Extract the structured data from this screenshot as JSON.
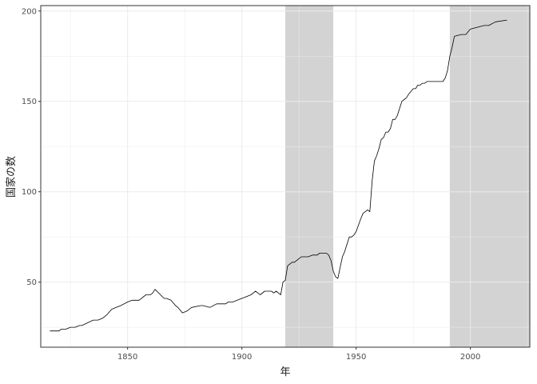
{
  "chart_data": {
    "type": "line",
    "title": "",
    "xlabel": "年",
    "ylabel": "国家の数",
    "xlim": [
      1812,
      2026
    ],
    "ylim": [
      14,
      203
    ],
    "xticks": [
      1850,
      1900,
      1950,
      2000
    ],
    "xtick_labels": [
      "1850",
      "1900",
      "1950",
      "2000"
    ],
    "yticks": [
      50,
      100,
      150,
      200
    ],
    "ytick_labels": [
      "50",
      "100",
      "150",
      "200"
    ],
    "grid": true,
    "shaded_periods": [
      {
        "start": 1919,
        "end": 1940
      },
      {
        "start": 1991,
        "end": 2026
      }
    ],
    "series": [
      {
        "x": [
          1816,
          1820,
          1821,
          1823,
          1825,
          1827,
          1829,
          1830,
          1835,
          1837,
          1839,
          1841,
          1843,
          1845,
          1847,
          1850,
          1852,
          1855,
          1858,
          1860,
          1861,
          1862,
          1866,
          1867,
          1869,
          1871,
          1872,
          1874,
          1876,
          1878,
          1882,
          1883,
          1886,
          1889,
          1893,
          1894,
          1896,
          1898,
          1900,
          1902,
          1904,
          1905,
          1906,
          1907,
          1908,
          1910,
          1913,
          1914,
          1915,
          1916,
          1917,
          1918,
          1919,
          1920,
          1921,
          1922,
          1923,
          1925,
          1926,
          1929,
          1931,
          1933,
          1934,
          1937,
          1938,
          1939,
          1940,
          1941,
          1942,
          1943,
          1944,
          1945,
          1946,
          1947,
          1948,
          1949,
          1950,
          1952,
          1953,
          1955,
          1956,
          1957,
          1958,
          1959,
          1960,
          1961,
          1962,
          1963,
          1964,
          1965,
          1966,
          1967,
          1968,
          1970,
          1971,
          1972,
          1973,
          1975,
          1976,
          1977,
          1978,
          1979,
          1980,
          1981,
          1982,
          1983,
          1984,
          1986,
          1988,
          1989,
          1990,
          1991,
          1992,
          1993,
          1996,
          1998,
          2000,
          2003,
          2006,
          2008,
          2011,
          2016
        ],
        "values": [
          23,
          23,
          24,
          24,
          25,
          25,
          26,
          26,
          29,
          29,
          30,
          32,
          35,
          36,
          37,
          39,
          40,
          40,
          43,
          43,
          44,
          46,
          41,
          41,
          40,
          37,
          36,
          33,
          34,
          36,
          37,
          37,
          36,
          38,
          38,
          39,
          39,
          40,
          41,
          42,
          43,
          44,
          45,
          44,
          43,
          45,
          45,
          44,
          45,
          44,
          43,
          50,
          51,
          59,
          60,
          61,
          61,
          63,
          64,
          64,
          65,
          65,
          66,
          66,
          65,
          62,
          56,
          53,
          52,
          58,
          64,
          67,
          71,
          75,
          75,
          76,
          78,
          85,
          88,
          90,
          89,
          106,
          117,
          120,
          124,
          129,
          130,
          133,
          133,
          135,
          140,
          140,
          142,
          150,
          151,
          152,
          154,
          157,
          157,
          159,
          159,
          160,
          160,
          161,
          161,
          161,
          161,
          161,
          161,
          163,
          167,
          175,
          180,
          186,
          187,
          187,
          190,
          191,
          192,
          192,
          194,
          195
        ]
      }
    ]
  }
}
